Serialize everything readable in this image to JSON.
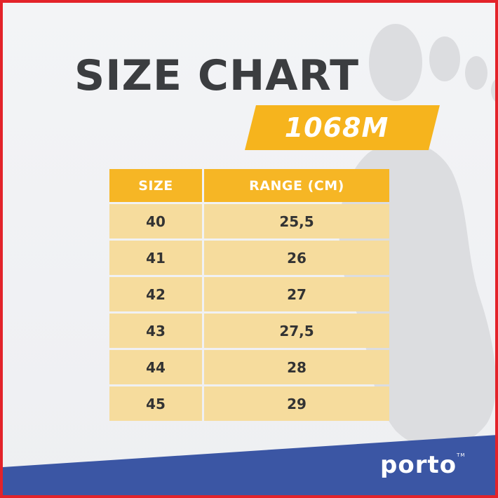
{
  "header": {
    "title": "SIZE CHART",
    "model": "1068M"
  },
  "table": {
    "columns": [
      "SIZE",
      "RANGE (CM)"
    ],
    "rows": [
      {
        "size": "40",
        "range": "25,5"
      },
      {
        "size": "41",
        "range": "26"
      },
      {
        "size": "42",
        "range": "27"
      },
      {
        "size": "43",
        "range": "27,5"
      },
      {
        "size": "44",
        "range": "28"
      },
      {
        "size": "45",
        "range": "29"
      }
    ]
  },
  "brand": {
    "logo_text": "porto",
    "trademark": "TM"
  },
  "colors": {
    "accent": "#f6b41d",
    "header_cell": "#f6b625",
    "body_cell": "#f6dc9d",
    "title": "#3b3d40",
    "band": "#3b56a4",
    "border": "#e3232a"
  },
  "icons": {
    "background": "foot-icon"
  }
}
